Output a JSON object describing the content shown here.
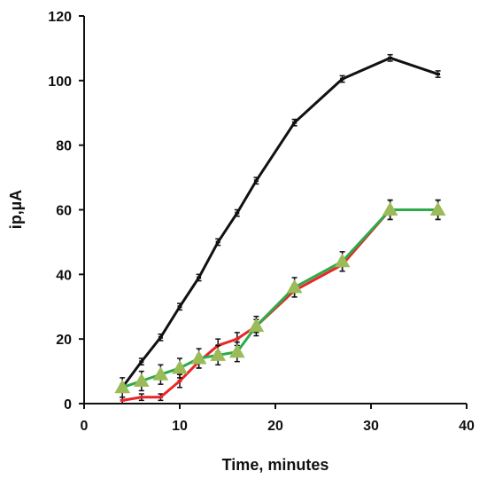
{
  "chart_data": {
    "type": "line",
    "title": "",
    "xlabel": "Time, minutes",
    "ylabel": "ip,µA",
    "xlim": [
      0,
      40
    ],
    "ylim": [
      0,
      120
    ],
    "x_ticks": [
      0,
      10,
      20,
      30,
      40
    ],
    "y_ticks": [
      0,
      20,
      40,
      60,
      80,
      100,
      120
    ],
    "grid": false,
    "legend": "none",
    "series": [
      {
        "color": "#111111",
        "marker": "dash",
        "x": [
          4,
          6,
          8,
          10,
          12,
          14,
          16,
          18,
          22,
          27,
          32,
          37
        ],
        "y": [
          5,
          13,
          20.5,
          30,
          39,
          50,
          59,
          69,
          87,
          100.5,
          107,
          102
        ],
        "error": [
          1,
          1,
          1,
          1,
          1,
          1,
          1,
          1,
          1,
          1,
          1,
          1
        ]
      },
      {
        "color": "#e8262a",
        "marker": "dash",
        "x": [
          4,
          6,
          8,
          10,
          12,
          14,
          16,
          18,
          22,
          27,
          32,
          37
        ],
        "y": [
          1,
          2,
          2,
          7,
          13,
          18,
          20,
          24,
          35,
          43,
          60,
          60
        ],
        "error": [
          1,
          1,
          1,
          2,
          2,
          2,
          2,
          2,
          2,
          2,
          3,
          3
        ]
      },
      {
        "color": "#2eaa4a",
        "marker": "triangle",
        "marker_color": "#9bbb59",
        "x": [
          4,
          6,
          8,
          10,
          12,
          14,
          16,
          18,
          22,
          27,
          32,
          37
        ],
        "y": [
          5,
          7,
          9,
          11,
          14,
          15,
          16,
          24,
          36,
          44,
          60,
          60
        ],
        "error": [
          3,
          3,
          3,
          3,
          3,
          3,
          3,
          3,
          3,
          3,
          3,
          3
        ]
      }
    ]
  }
}
